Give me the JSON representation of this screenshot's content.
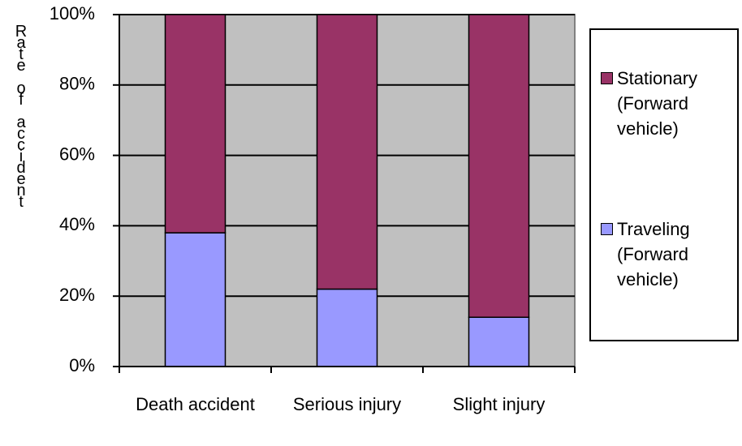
{
  "chart_data": {
    "type": "stacked_bar",
    "y_label": "Rate of accident",
    "categories": [
      "Death accident",
      "Serious injury",
      "Slight injury"
    ],
    "series": [
      {
        "name": "Traveling (Forward vehicle)",
        "color": "#9999ff",
        "values": [
          38,
          22,
          14
        ]
      },
      {
        "name": "Stationary (Forward vehicle)",
        "color": "#993366",
        "values": [
          62,
          78,
          86
        ]
      }
    ],
    "ylim": [
      0,
      100
    ],
    "yticks": [
      {
        "value": 0,
        "label": "0%"
      },
      {
        "value": 20,
        "label": "20%"
      },
      {
        "value": 40,
        "label": "40%"
      },
      {
        "value": 60,
        "label": "60%"
      },
      {
        "value": 80,
        "label": "80%"
      },
      {
        "value": 100,
        "label": "100%"
      }
    ],
    "grid": true,
    "plot_background": "#c0c0c0"
  }
}
